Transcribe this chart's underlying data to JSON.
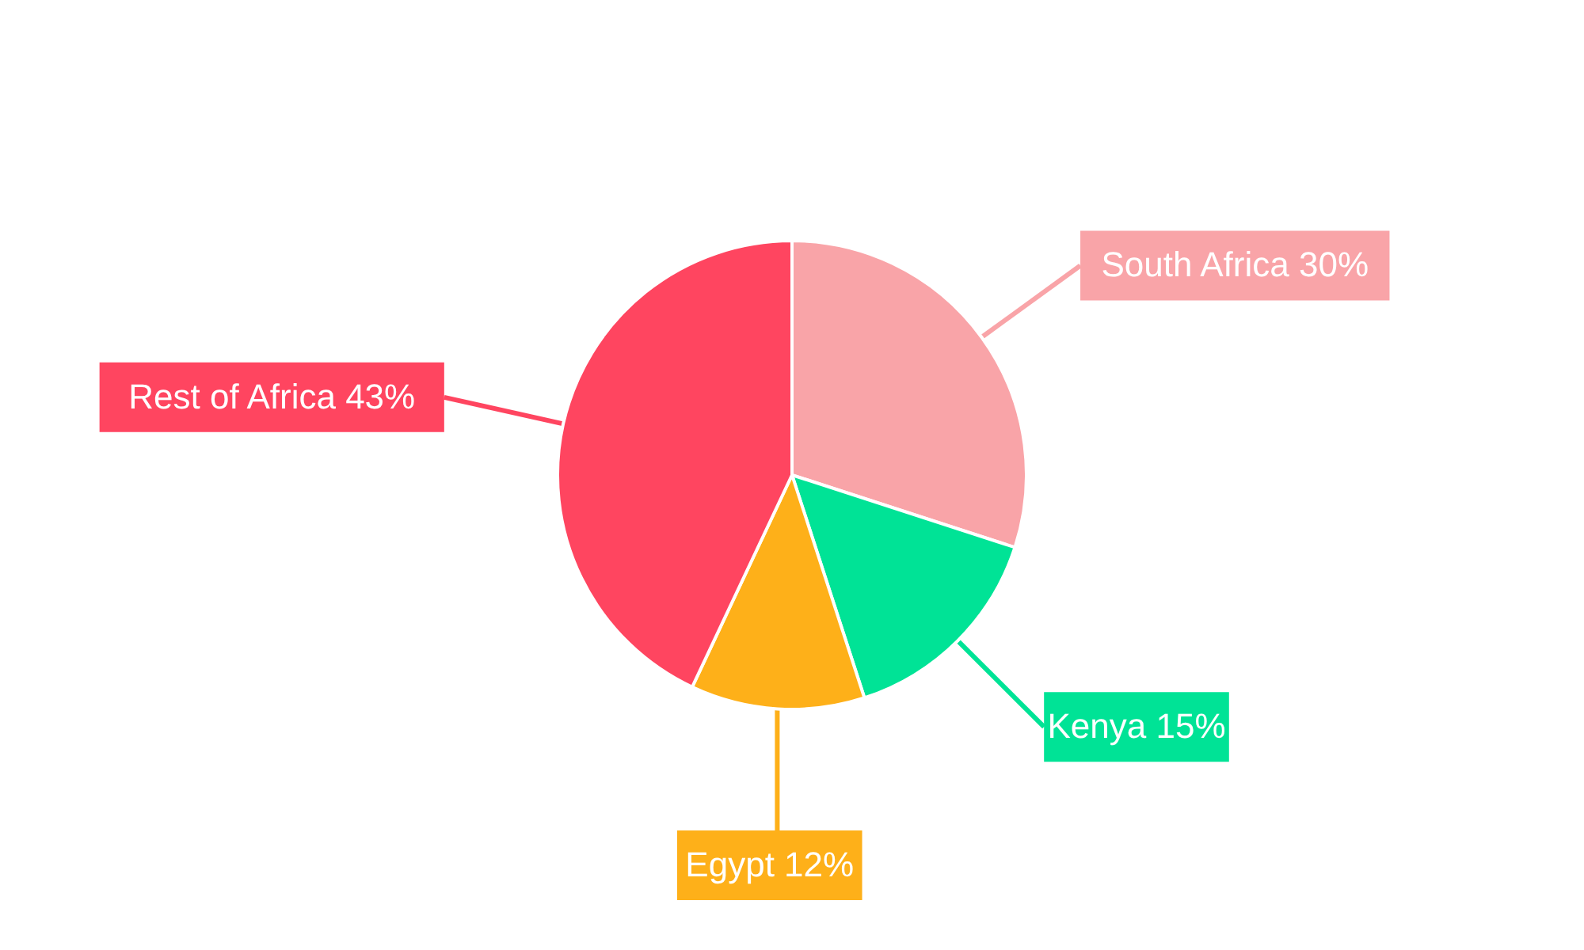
{
  "chart_data": {
    "type": "pie",
    "categories": [
      "South Africa",
      "Kenya",
      "Egypt",
      "Rest of Africa"
    ],
    "values": [
      30,
      15,
      12,
      43
    ],
    "value_labels": [
      "30%",
      "15%",
      "12%",
      "43%"
    ],
    "colors": [
      "#f9a4a8",
      "#00e396",
      "#feb019",
      "#ff4560"
    ]
  }
}
